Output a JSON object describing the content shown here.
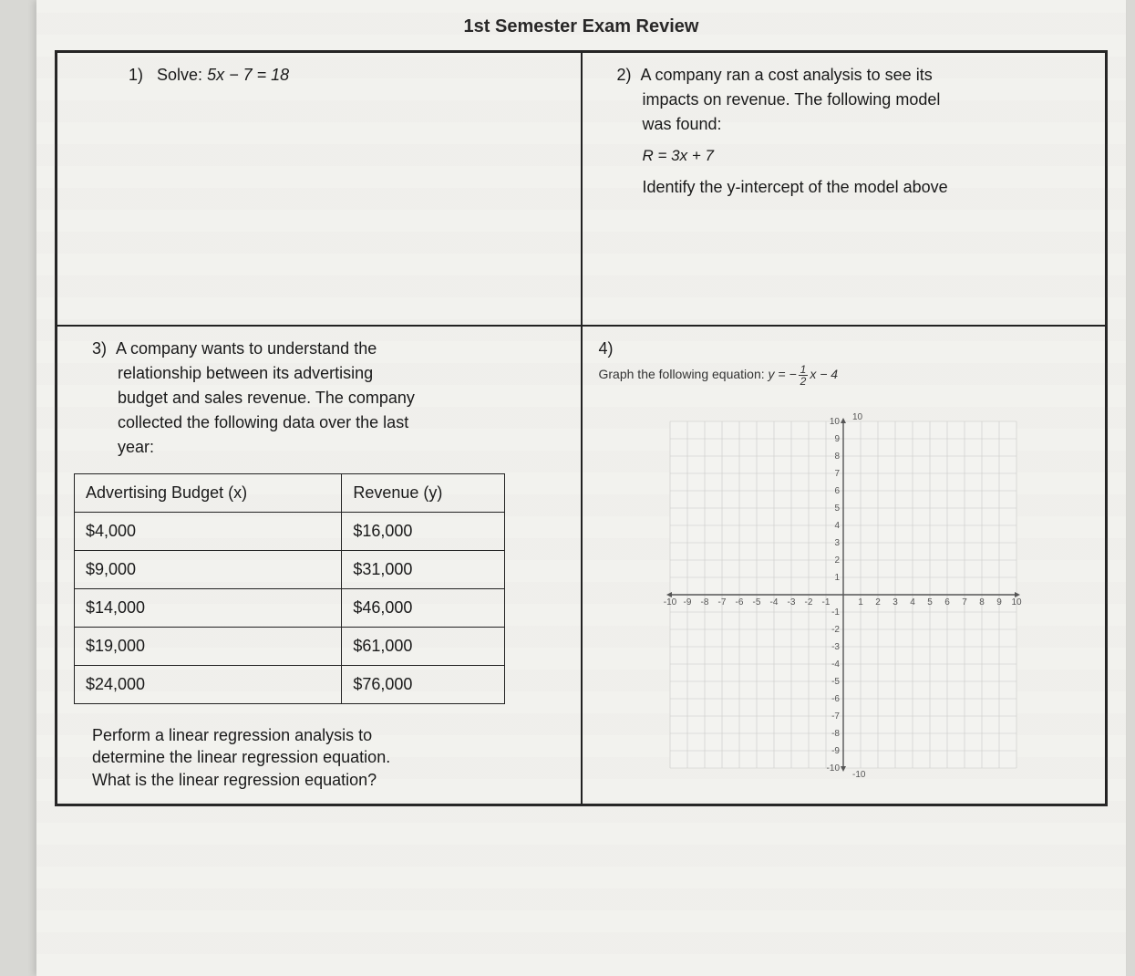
{
  "page": {
    "title": "1st Semester Exam Review"
  },
  "q1": {
    "number": "1)",
    "prompt_prefix": "Solve: ",
    "equation": "5x − 7 = 18"
  },
  "q2": {
    "number": "2)",
    "prompt_l1": "A company ran a cost analysis to see its",
    "prompt_l2": "impacts on revenue. The following model",
    "prompt_l3": "was found:",
    "equation": "R = 3x + 7",
    "followup": "Identify the y-intercept of the model above"
  },
  "q3": {
    "number": "3)",
    "prompt_l1": "A company wants to understand the",
    "prompt_l2": "relationship between its advertising",
    "prompt_l3": "budget and sales revenue. The company",
    "prompt_l4": "collected the following data over the last",
    "prompt_l5": "year:",
    "table": {
      "col1_header": "Advertising Budget (x)",
      "col2_header": "Revenue (y)",
      "rows": [
        [
          "$4,000",
          "$16,000"
        ],
        [
          "$9,000",
          "$31,000"
        ],
        [
          "$14,000",
          "$46,000"
        ],
        [
          "$19,000",
          "$61,000"
        ],
        [
          "$24,000",
          "$76,000"
        ]
      ]
    },
    "followup_l1": "Perform a linear regression analysis to",
    "followup_l2": "determine the linear regression equation.",
    "followup_l3": "What is the linear regression equation?"
  },
  "q4": {
    "number": "4)",
    "prompt_prefix": "Graph the following equation: ",
    "eq_lhs": "y = −",
    "eq_num": "1",
    "eq_den": "2",
    "eq_rhs": "x − 4",
    "graph": {
      "xlim": [
        -10,
        10
      ],
      "ylim": [
        -10,
        10
      ],
      "tick_step": 1,
      "grid_color": "#c9c9c6",
      "axis_color": "#555555",
      "background": "#f3f3f0"
    }
  },
  "style": {
    "text_color": "#1a1a1a",
    "sheet_bg": "#f5f5f2",
    "border_color": "#222222"
  }
}
